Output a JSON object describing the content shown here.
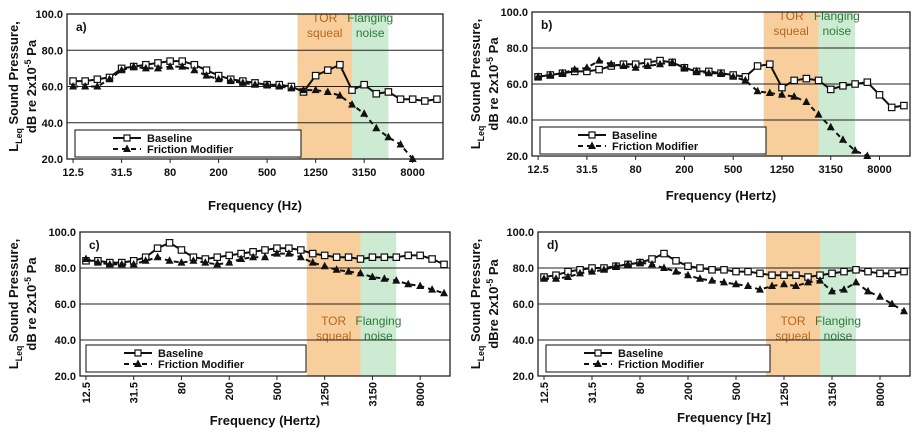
{
  "chart_data": [
    {
      "type": "line",
      "panel_label": "a)",
      "ylabel_line1": "L_Leq Sound Pressure,",
      "ylabel_line2": "dB re 2x10^-5 Pa",
      "xlabel": "Frequency (Hz)",
      "ylim": [
        20,
        100
      ],
      "y_ticks": [
        "20.0",
        "40.0",
        "60.0",
        "80.0",
        "100.0"
      ],
      "x_ticks": [
        "12.5",
        "31.5",
        "80",
        "200",
        "500",
        "1250",
        "3150",
        "8000"
      ],
      "x_tick_rotation": 0,
      "bands": [
        {
          "label_line1": "TOR",
          "label_line2": "squeal",
          "from_band": 19,
          "to_band": 23.5,
          "color": "#f8cf9c",
          "text_color": "#b8651a"
        },
        {
          "label_line1": "Flanging",
          "label_line2": "noise",
          "from_band": 23.5,
          "to_band": 26.5,
          "color": "#cdebd3",
          "text_color": "#2b7a3a"
        }
      ],
      "legend": {
        "entries": [
          "Baseline",
          "Friction Modifier"
        ],
        "placement": "bottom-left"
      },
      "series": [
        {
          "name": "Baseline",
          "marker": "square-open",
          "dash": "solid",
          "values": [
            63,
            63,
            64,
            65,
            70,
            71,
            72,
            73,
            74,
            74,
            72,
            69,
            66,
            64,
            63,
            62,
            61,
            61,
            60,
            57,
            66,
            69,
            72,
            58,
            61,
            56,
            57,
            53,
            53,
            52,
            53
          ]
        },
        {
          "name": "Friction Modifier",
          "marker": "triangle",
          "dash": "dashed",
          "values": [
            60,
            60,
            60,
            64,
            69,
            71,
            70,
            70,
            71,
            71,
            69,
            66,
            64,
            63,
            62,
            61,
            61,
            60,
            59,
            58,
            58,
            57,
            55,
            50,
            45,
            37,
            32,
            28,
            20,
            null,
            null
          ]
        }
      ]
    },
    {
      "type": "line",
      "panel_label": "b)",
      "ylabel_line1": "L_Leq Sound Pressure,",
      "ylabel_line2": "dB re 2x10^-5 Pa",
      "xlabel": "Frequency (Hertz)",
      "ylim": [
        20,
        100
      ],
      "y_ticks": [
        "20.0",
        "40.0",
        "60.0",
        "80.0",
        "100.0"
      ],
      "x_ticks": [
        "12.5",
        "31.5",
        "80",
        "200",
        "500",
        "1250",
        "3150",
        "8000"
      ],
      "x_tick_rotation": 0,
      "bands": [
        {
          "label_line1": "TOR",
          "label_line2": "squeal",
          "from_band": 19,
          "to_band": 23.5,
          "color": "#f8cf9c",
          "text_color": "#b8651a"
        },
        {
          "label_line1": "Flanging",
          "label_line2": "noise",
          "from_band": 23.5,
          "to_band": 26.5,
          "color": "#cdebd3",
          "text_color": "#2b7a3a"
        }
      ],
      "legend": {
        "entries": [
          "Baseline",
          "Friction Modifier"
        ],
        "placement": "bottom-left"
      },
      "series": [
        {
          "name": "Baseline",
          "marker": "square-open",
          "dash": "solid",
          "values": [
            64,
            65,
            66,
            67,
            67,
            68,
            70,
            71,
            71,
            72,
            73,
            72,
            69,
            67,
            67,
            66,
            65,
            64,
            70,
            71,
            58,
            62,
            63,
            62,
            57,
            59,
            60,
            61,
            54,
            47,
            48
          ]
        },
        {
          "name": "Friction Modifier",
          "marker": "triangle",
          "dash": "dashed",
          "values": [
            64,
            65,
            66,
            68,
            69,
            73,
            71,
            70,
            69,
            70,
            71,
            72,
            69,
            67,
            66,
            66,
            64,
            62,
            56,
            55,
            54,
            53,
            50,
            43,
            36,
            29,
            23,
            20,
            null,
            null,
            null
          ]
        }
      ]
    },
    {
      "type": "line",
      "panel_label": "c)",
      "ylabel_line1": "L_Leq Sound Pressure,",
      "ylabel_line2": "dB re 2x10^-5 Pa",
      "xlabel": "Frequency (Hertz)",
      "ylim": [
        20,
        100
      ],
      "y_ticks": [
        "20.0",
        "40.0",
        "60.0",
        "80.0",
        "100.0"
      ],
      "x_ticks": [
        "12.5",
        "31.5",
        "80",
        "200",
        "500",
        "1250",
        "3150",
        "8000"
      ],
      "x_tick_rotation": -90,
      "bands": [
        {
          "label_line1": "TOR",
          "label_line2": "squeal",
          "from_band": 19,
          "to_band": 23.5,
          "color": "#f8cf9c",
          "text_color": "#b8651a"
        },
        {
          "label_line1": "Flanging",
          "label_line2": "noise",
          "from_band": 23.5,
          "to_band": 26.5,
          "color": "#cdebd3",
          "text_color": "#2b7a3a"
        }
      ],
      "legend": {
        "entries": [
          "Baseline",
          "Friction Modifier"
        ],
        "placement": "bottom-left"
      },
      "series": [
        {
          "name": "Baseline",
          "marker": "square-open",
          "dash": "solid",
          "values": [
            84,
            84,
            83,
            83,
            84,
            86,
            91,
            94,
            90,
            86,
            85,
            86,
            87,
            88,
            89,
            90,
            91,
            91,
            90,
            88,
            87,
            86,
            86,
            85,
            86,
            86,
            86,
            87,
            87,
            85,
            82
          ]
        },
        {
          "name": "Friction Modifier",
          "marker": "triangle",
          "dash": "dashed",
          "values": [
            85,
            83,
            82,
            82,
            82,
            84,
            86,
            84,
            83,
            84,
            83,
            82,
            83,
            85,
            86,
            86,
            88,
            88,
            86,
            83,
            81,
            79,
            78,
            77,
            75,
            74,
            73,
            71,
            70,
            68,
            66
          ]
        }
      ]
    },
    {
      "type": "line",
      "panel_label": "d)",
      "ylabel_line1": "L_Leq Sound Pressure,",
      "ylabel_line2": "dBre 2x10^-5 Pa",
      "xlabel": "Frequency [Hz]",
      "ylim": [
        20,
        100
      ],
      "y_ticks": [
        "20.0",
        "40.0",
        "60.0",
        "80.0",
        "100.0"
      ],
      "x_ticks": [
        "12.5",
        "31.5",
        "80",
        "200",
        "500",
        "1250",
        "3150",
        "8000"
      ],
      "x_tick_rotation": -90,
      "bands": [
        {
          "label_line1": "TOR",
          "label_line2": "squeal",
          "from_band": 19,
          "to_band": 23.5,
          "color": "#f8cf9c",
          "text_color": "#b8651a"
        },
        {
          "label_line1": "Flanging",
          "label_line2": "noise",
          "from_band": 23.5,
          "to_band": 26.5,
          "color": "#cdebd3",
          "text_color": "#2b7a3a"
        }
      ],
      "legend": {
        "entries": [
          "Baseline",
          "Friction Modifier"
        ],
        "placement": "bottom-left"
      },
      "series": [
        {
          "name": "Baseline",
          "marker": "square-open",
          "dash": "solid",
          "values": [
            75,
            76,
            78,
            79,
            80,
            80,
            81,
            82,
            83,
            85,
            88,
            84,
            81,
            80,
            79,
            79,
            78,
            78,
            77,
            76,
            76,
            76,
            75,
            76,
            77,
            78,
            79,
            78,
            77,
            77,
            78
          ]
        },
        {
          "name": "Friction Modifier",
          "marker": "triangle",
          "dash": "dashed",
          "values": [
            74,
            74,
            75,
            77,
            78,
            79,
            81,
            82,
            83,
            82,
            80,
            78,
            76,
            74,
            73,
            72,
            71,
            70,
            68,
            70,
            71,
            70,
            72,
            73,
            67,
            68,
            72,
            67,
            64,
            60,
            56
          ]
        }
      ]
    }
  ]
}
